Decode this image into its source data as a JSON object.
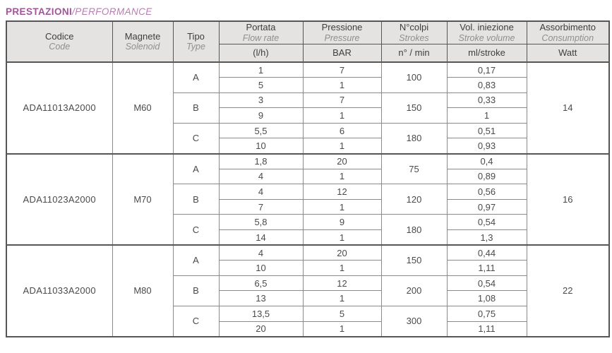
{
  "title": {
    "main": "PRESTAZIONI",
    "sub": "/PERFORMANCE"
  },
  "colors": {
    "title_main": "#a2539a",
    "title_sub": "#b77db1",
    "header_bg": "#e4e3e1",
    "border_dark": "#565656",
    "border_light": "#8a8a8a",
    "text_dark": "#3e3e3e",
    "text_italic": "#8f8f8f"
  },
  "header": {
    "codice": {
      "it": "Codice",
      "en": "Code"
    },
    "magnete": {
      "it": "Magnete",
      "en": "Solenoid"
    },
    "tipo": {
      "it": "Tipo",
      "en": "Type"
    },
    "portata": {
      "it": "Portata",
      "en": "Flow rate",
      "unit": "(l/h)"
    },
    "pressione": {
      "it": "Pressione",
      "en": "Pressure",
      "unit": "BAR"
    },
    "colpi": {
      "it": "N°colpi",
      "en": "Strokes",
      "unit": "n° / min"
    },
    "iniezione": {
      "it": "Vol. iniezione",
      "en": "Stroke volume",
      "unit": "ml/stroke"
    },
    "assorbimento": {
      "it": "Assorbimento",
      "en": "Consumption",
      "unit": "Watt"
    }
  },
  "table": {
    "blocks": [
      {
        "code": "ADA11013A2000",
        "solenoid": "M60",
        "watt": "14",
        "groups": [
          {
            "type": "A",
            "strokes": "100",
            "rows": [
              {
                "flow": "1",
                "pressure": "7",
                "volume": "0,17"
              },
              {
                "flow": "5",
                "pressure": "1",
                "volume": "0,83"
              }
            ]
          },
          {
            "type": "B",
            "strokes": "150",
            "rows": [
              {
                "flow": "3",
                "pressure": "7",
                "volume": "0,33"
              },
              {
                "flow": "9",
                "pressure": "1",
                "volume": "1"
              }
            ]
          },
          {
            "type": "C",
            "strokes": "180",
            "rows": [
              {
                "flow": "5,5",
                "pressure": "6",
                "volume": "0,51"
              },
              {
                "flow": "10",
                "pressure": "1",
                "volume": "0,93"
              }
            ]
          }
        ]
      },
      {
        "code": "ADA11023A2000",
        "solenoid": "M70",
        "watt": "16",
        "groups": [
          {
            "type": "A",
            "strokes": "75",
            "rows": [
              {
                "flow": "1,8",
                "pressure": "20",
                "volume": "0,4"
              },
              {
                "flow": "4",
                "pressure": "1",
                "volume": "0,89"
              }
            ]
          },
          {
            "type": "B",
            "strokes": "120",
            "rows": [
              {
                "flow": "4",
                "pressure": "12",
                "volume": "0,56"
              },
              {
                "flow": "7",
                "pressure": "1",
                "volume": "0,97"
              }
            ]
          },
          {
            "type": "C",
            "strokes": "180",
            "rows": [
              {
                "flow": "5,8",
                "pressure": "9",
                "volume": "0,54"
              },
              {
                "flow": "14",
                "pressure": "1",
                "volume": "1,3"
              }
            ]
          }
        ]
      },
      {
        "code": "ADA11033A2000",
        "solenoid": "M80",
        "watt": "22",
        "groups": [
          {
            "type": "A",
            "strokes": "150",
            "rows": [
              {
                "flow": "4",
                "pressure": "20",
                "volume": "0,44"
              },
              {
                "flow": "10",
                "pressure": "1",
                "volume": "1,11"
              }
            ]
          },
          {
            "type": "B",
            "strokes": "200",
            "rows": [
              {
                "flow": "6,5",
                "pressure": "12",
                "volume": "0,54"
              },
              {
                "flow": "13",
                "pressure": "1",
                "volume": "1,08"
              }
            ]
          },
          {
            "type": "C",
            "strokes": "300",
            "rows": [
              {
                "flow": "13,5",
                "pressure": "5",
                "volume": "0,75"
              },
              {
                "flow": "20",
                "pressure": "1",
                "volume": "1,11"
              }
            ]
          }
        ]
      }
    ]
  }
}
